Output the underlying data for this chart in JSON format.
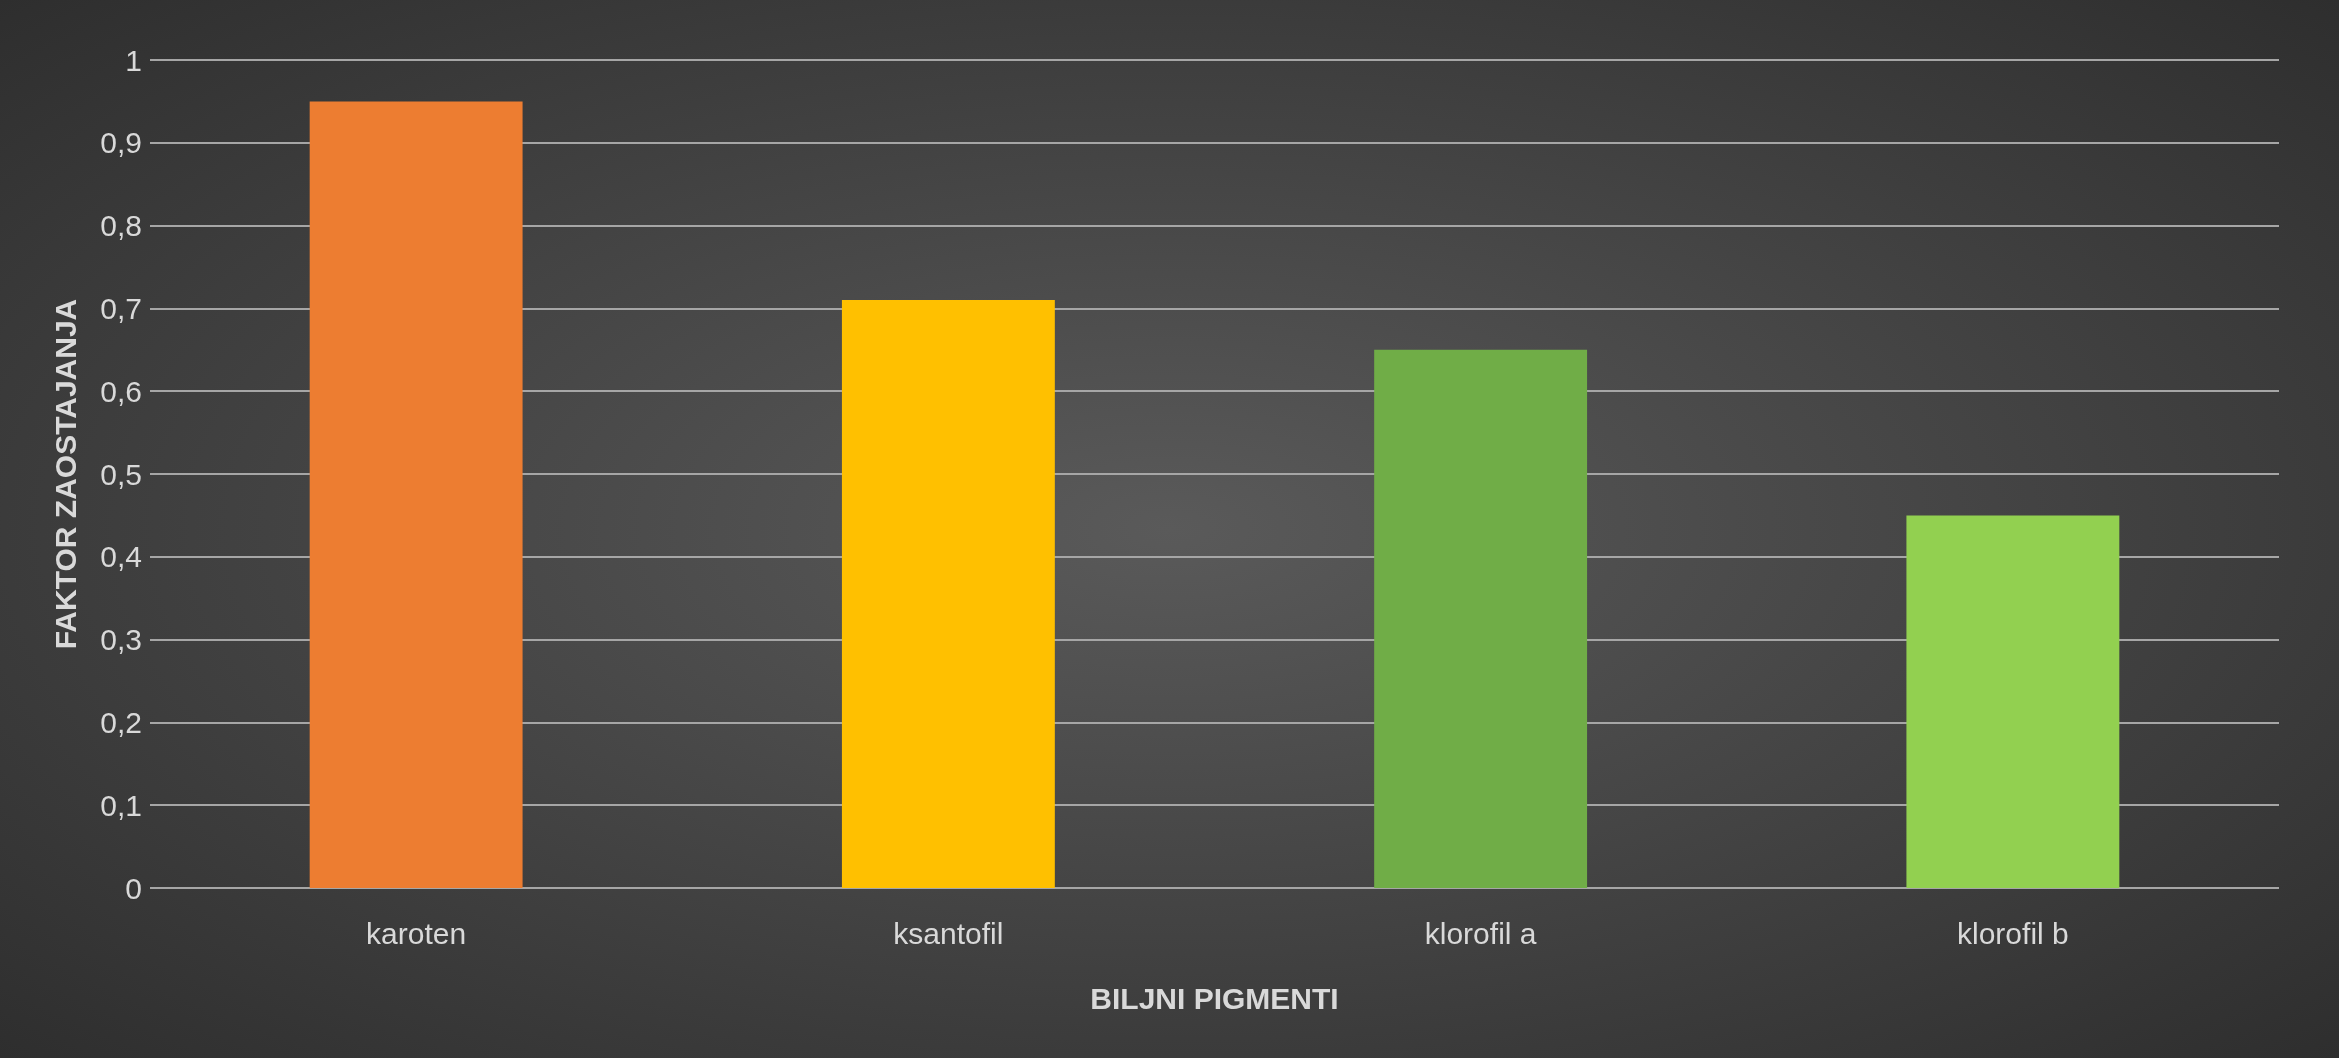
{
  "chart_data": {
    "type": "bar",
    "xlabel": "BILJNI PIGMENTI",
    "ylabel": "FAKTOR ZAOSTAJANJA",
    "categories": [
      "karoten",
      "ksantofil",
      "klorofil a",
      "klorofil b"
    ],
    "values": [
      0.95,
      0.71,
      0.65,
      0.45
    ],
    "colors": [
      "#ed7d31",
      "#ffc000",
      "#70ad47",
      "#92d050"
    ],
    "ylim": [
      0,
      1
    ],
    "yticks": [
      0,
      {
        "value": 0.1,
        "label": "0,1"
      },
      {
        "value": 0.2,
        "label": "0,2"
      },
      {
        "value": 0.3,
        "label": "0,3"
      },
      {
        "value": 0.4,
        "label": "0,4"
      },
      {
        "value": 0.5,
        "label": "0,5"
      },
      {
        "value": 0.6,
        "label": "0,6"
      },
      {
        "value": 0.7,
        "label": "0,7"
      },
      {
        "value": 0.8,
        "label": "0,8"
      },
      {
        "value": 0.9,
        "label": "0,9"
      },
      1
    ],
    "grid": "y"
  }
}
